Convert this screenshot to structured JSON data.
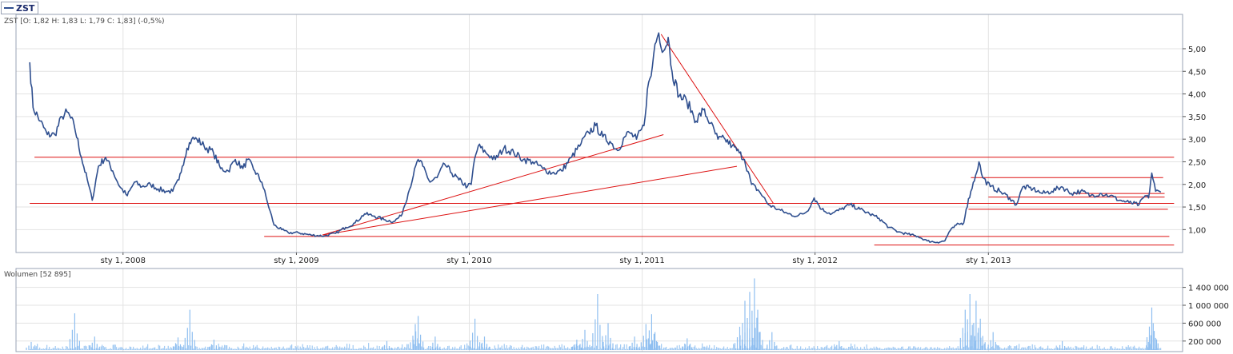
{
  "legend": {
    "symbol": "ZST",
    "color": "#2f4f8f"
  },
  "price_panel": {
    "info": "ZST [O: 1,82  H: 1,83  L: 1,79  C: 1,83] (-0,5%)"
  },
  "volume_panel": {
    "info": "Wolumen [52 895]"
  },
  "colors": {
    "price_line": "#2f4f8f",
    "trend_lines": "#dd1111",
    "volume_bars": "#8fbff0",
    "grid": "#e3e3e3"
  },
  "chart_data": [
    {
      "type": "line",
      "name": "price",
      "series": [
        {
          "name": "ZST",
          "values": [
            [
              "2007-06-18",
              4.7
            ],
            [
              "2007-06-25",
              3.7
            ],
            [
              "2007-07-10",
              3.4
            ],
            [
              "2007-07-25",
              3.1
            ],
            [
              "2007-08-10",
              3.1
            ],
            [
              "2007-08-25",
              3.5
            ],
            [
              "2007-09-05",
              3.6
            ],
            [
              "2007-09-20",
              3.3
            ],
            [
              "2007-10-05",
              2.6
            ],
            [
              "2007-10-20",
              2.0
            ],
            [
              "2007-10-28",
              1.65
            ],
            [
              "2007-11-10",
              2.4
            ],
            [
              "2007-11-25",
              2.6
            ],
            [
              "2007-12-10",
              2.3
            ],
            [
              "2007-12-25",
              1.95
            ],
            [
              "2008-01-10",
              1.75
            ],
            [
              "2008-01-25",
              2.05
            ],
            [
              "2008-02-10",
              1.95
            ],
            [
              "2008-02-28",
              2.0
            ],
            [
              "2008-03-15",
              1.9
            ],
            [
              "2008-04-01",
              1.85
            ],
            [
              "2008-04-15",
              1.85
            ],
            [
              "2008-04-28",
              2.1
            ],
            [
              "2008-05-05",
              2.4
            ],
            [
              "2008-05-15",
              2.8
            ],
            [
              "2008-05-25",
              3.0
            ],
            [
              "2008-06-05",
              3.0
            ],
            [
              "2008-06-20",
              2.85
            ],
            [
              "2008-07-10",
              2.7
            ],
            [
              "2008-07-25",
              2.35
            ],
            [
              "2008-08-10",
              2.3
            ],
            [
              "2008-08-25",
              2.55
            ],
            [
              "2008-09-10",
              2.35
            ],
            [
              "2008-09-20",
              2.55
            ],
            [
              "2008-10-05",
              2.3
            ],
            [
              "2008-10-20",
              2.05
            ],
            [
              "2008-11-01",
              1.6
            ],
            [
              "2008-11-15",
              1.1
            ],
            [
              "2008-12-01",
              1.0
            ],
            [
              "2008-12-15",
              0.93
            ],
            [
              "2009-01-05",
              0.93
            ],
            [
              "2009-02-01",
              0.88
            ],
            [
              "2009-03-01",
              0.86
            ],
            [
              "2009-03-25",
              0.92
            ],
            [
              "2009-04-15",
              1.05
            ],
            [
              "2009-05-05",
              1.15
            ],
            [
              "2009-05-25",
              1.35
            ],
            [
              "2009-06-15",
              1.3
            ],
            [
              "2009-07-05",
              1.22
            ],
            [
              "2009-07-25",
              1.18
            ],
            [
              "2009-08-10",
              1.3
            ],
            [
              "2009-08-25",
              1.8
            ],
            [
              "2009-09-05",
              2.2
            ],
            [
              "2009-09-15",
              2.55
            ],
            [
              "2009-09-25",
              2.4
            ],
            [
              "2009-10-10",
              2.05
            ],
            [
              "2009-10-25",
              2.15
            ],
            [
              "2009-11-10",
              2.45
            ],
            [
              "2009-11-25",
              2.25
            ],
            [
              "2009-12-10",
              2.1
            ],
            [
              "2009-12-28",
              1.95
            ],
            [
              "2010-01-05",
              2.0
            ],
            [
              "2010-01-12",
              2.55
            ],
            [
              "2010-01-20",
              2.85
            ],
            [
              "2010-02-05",
              2.7
            ],
            [
              "2010-02-25",
              2.55
            ],
            [
              "2010-03-15",
              2.8
            ],
            [
              "2010-04-05",
              2.7
            ],
            [
              "2010-04-25",
              2.55
            ],
            [
              "2010-05-15",
              2.5
            ],
            [
              "2010-06-05",
              2.35
            ],
            [
              "2010-06-25",
              2.25
            ],
            [
              "2010-07-15",
              2.3
            ],
            [
              "2010-08-05",
              2.6
            ],
            [
              "2010-08-25",
              2.9
            ],
            [
              "2010-09-10",
              3.15
            ],
            [
              "2010-09-25",
              3.3
            ],
            [
              "2010-10-10",
              3.05
            ],
            [
              "2010-10-25",
              2.95
            ],
            [
              "2010-11-10",
              2.75
            ],
            [
              "2010-11-25",
              3.05
            ],
            [
              "2010-12-05",
              3.15
            ],
            [
              "2010-12-20",
              3.0
            ],
            [
              "2011-01-05",
              3.3
            ],
            [
              "2011-01-12",
              4.1
            ],
            [
              "2011-01-20",
              4.4
            ],
            [
              "2011-01-28",
              5.1
            ],
            [
              "2011-02-05",
              5.35
            ],
            [
              "2011-02-15",
              4.95
            ],
            [
              "2011-02-25",
              5.25
            ],
            [
              "2011-03-05",
              4.5
            ],
            [
              "2011-03-20",
              3.95
            ],
            [
              "2011-04-05",
              3.85
            ],
            [
              "2011-04-25",
              3.4
            ],
            [
              "2011-05-10",
              3.65
            ],
            [
              "2011-05-25",
              3.35
            ],
            [
              "2011-06-10",
              3.0
            ],
            [
              "2011-06-25",
              3.0
            ],
            [
              "2011-07-10",
              2.85
            ],
            [
              "2011-07-25",
              2.7
            ],
            [
              "2011-08-05",
              2.55
            ],
            [
              "2011-08-20",
              2.0
            ],
            [
              "2011-09-05",
              1.85
            ],
            [
              "2011-09-25",
              1.55
            ],
            [
              "2011-10-15",
              1.45
            ],
            [
              "2011-11-05",
              1.35
            ],
            [
              "2011-11-25",
              1.3
            ],
            [
              "2011-12-15",
              1.4
            ],
            [
              "2011-12-30",
              1.7
            ],
            [
              "2012-01-15",
              1.45
            ],
            [
              "2012-02-05",
              1.35
            ],
            [
              "2012-02-25",
              1.45
            ],
            [
              "2012-03-15",
              1.55
            ],
            [
              "2012-04-05",
              1.45
            ],
            [
              "2012-04-25",
              1.35
            ],
            [
              "2012-05-15",
              1.25
            ],
            [
              "2012-06-05",
              1.05
            ],
            [
              "2012-06-25",
              0.95
            ],
            [
              "2012-07-15",
              0.9
            ],
            [
              "2012-08-05",
              0.85
            ],
            [
              "2012-08-25",
              0.75
            ],
            [
              "2012-09-15",
              0.72
            ],
            [
              "2012-10-01",
              0.75
            ],
            [
              "2012-10-10",
              0.95
            ],
            [
              "2012-10-25",
              1.1
            ],
            [
              "2012-11-10",
              1.15
            ],
            [
              "2012-11-15",
              1.45
            ],
            [
              "2012-11-25",
              1.85
            ],
            [
              "2012-12-05",
              2.2
            ],
            [
              "2012-12-12",
              2.5
            ],
            [
              "2012-12-20",
              2.15
            ],
            [
              "2013-01-05",
              1.95
            ],
            [
              "2013-01-25",
              1.85
            ],
            [
              "2013-02-15",
              1.7
            ],
            [
              "2013-03-01",
              1.55
            ],
            [
              "2013-03-15",
              1.95
            ],
            [
              "2013-04-05",
              1.9
            ],
            [
              "2013-04-25",
              1.8
            ],
            [
              "2013-05-15",
              1.85
            ],
            [
              "2013-06-05",
              1.95
            ],
            [
              "2013-06-25",
              1.8
            ],
            [
              "2013-07-15",
              1.85
            ],
            [
              "2013-08-05",
              1.75
            ],
            [
              "2013-08-25",
              1.8
            ],
            [
              "2013-09-15",
              1.75
            ],
            [
              "2013-10-05",
              1.65
            ],
            [
              "2013-10-25",
              1.6
            ],
            [
              "2013-11-15",
              1.55
            ],
            [
              "2013-11-28",
              1.75
            ],
            [
              "2013-12-05",
              1.7
            ],
            [
              "2013-12-12",
              2.25
            ],
            [
              "2013-12-20",
              1.85
            ],
            [
              "2013-12-31",
              1.83
            ]
          ]
        }
      ],
      "trend_lines": [
        {
          "from": [
            "2007-06-28",
            2.6
          ],
          "to": [
            "2014-01-28",
            2.6
          ]
        },
        {
          "from": [
            "2007-06-18",
            1.58
          ],
          "to": [
            "2014-01-28",
            1.58
          ]
        },
        {
          "from": [
            "2008-10-25",
            0.85
          ],
          "to": [
            "2014-01-18",
            0.85
          ]
        },
        {
          "from": [
            "2012-05-05",
            0.66
          ],
          "to": [
            "2014-01-28",
            0.66
          ]
        },
        {
          "from": [
            "2012-11-20",
            1.45
          ],
          "to": [
            "2014-01-15",
            1.45
          ]
        },
        {
          "from": [
            "2012-11-25",
            2.15
          ],
          "to": [
            "2014-01-05",
            2.15
          ]
        },
        {
          "from": [
            "2013-01-01",
            1.72
          ],
          "to": [
            "2014-01-08",
            1.72
          ]
        },
        {
          "from": [
            "2013-07-01",
            1.8
          ],
          "to": [
            "2014-01-08",
            1.8
          ]
        },
        {
          "from": [
            "2009-02-25",
            0.88
          ],
          "to": [
            "2011-02-15",
            3.1
          ]
        },
        {
          "from": [
            "2009-02-25",
            0.88
          ],
          "to": [
            "2011-07-20",
            2.4
          ]
        },
        {
          "from": [
            "2011-02-10",
            5.32
          ],
          "to": [
            "2011-10-05",
            1.58
          ]
        }
      ],
      "ylim": [
        0.6,
        5.6
      ],
      "y_ticks": [
        "1,00",
        "1,50",
        "2,00",
        "2,50",
        "3,00",
        "3,50",
        "4,00",
        "4,50",
        "5,00"
      ],
      "y_tick_values": [
        1.0,
        1.5,
        2.0,
        2.5,
        3.0,
        3.5,
        4.0,
        4.5,
        5.0
      ],
      "x_ticks": [
        "sty 1, 2008",
        "sty 1, 2009",
        "sty 1, 2010",
        "sty 1, 2011",
        "sty 1, 2012",
        "sty 1, 2013"
      ],
      "x_tick_dates": [
        "2008-01-01",
        "2009-01-01",
        "2010-01-01",
        "2011-01-01",
        "2012-01-01",
        "2013-01-01"
      ],
      "xlim": [
        "2007-05-20",
        "2014-02-15"
      ],
      "grid": true
    },
    {
      "type": "bar",
      "name": "volume",
      "series": [
        {
          "name": "Wolumen",
          "spikes": [
            [
              "2007-06-20",
              180000
            ],
            [
              "2007-09-20",
              820000
            ],
            [
              "2007-11-01",
              300000
            ],
            [
              "2008-04-25",
              280000
            ],
            [
              "2008-05-20",
              900000
            ],
            [
              "2008-07-10",
              230000
            ],
            [
              "2009-07-10",
              200000
            ],
            [
              "2009-09-08",
              580000
            ],
            [
              "2009-09-14",
              760000
            ],
            [
              "2009-10-20",
              300000
            ],
            [
              "2010-01-12",
              700000
            ],
            [
              "2010-02-01",
              300000
            ],
            [
              "2010-08-15",
              230000
            ],
            [
              "2010-09-01",
              450000
            ],
            [
              "2010-09-28",
              1250000
            ],
            [
              "2010-10-20",
              600000
            ],
            [
              "2010-12-15",
              300000
            ],
            [
              "2011-01-08",
              580000
            ],
            [
              "2011-01-20",
              800000
            ],
            [
              "2011-01-27",
              400000
            ],
            [
              "2011-04-05",
              260000
            ],
            [
              "2011-07-25",
              520000
            ],
            [
              "2011-08-05",
              1100000
            ],
            [
              "2011-08-15",
              1300000
            ],
            [
              "2011-08-25",
              1600000
            ],
            [
              "2011-09-01",
              900000
            ],
            [
              "2011-10-01",
              400000
            ],
            [
              "2012-02-20",
              200000
            ],
            [
              "2012-11-12",
              900000
            ],
            [
              "2012-11-22",
              1250000
            ],
            [
              "2012-12-05",
              1100000
            ],
            [
              "2012-12-14",
              700000
            ],
            [
              "2013-01-10",
              400000
            ],
            [
              "2013-06-05",
              200000
            ],
            [
              "2013-12-11",
              950000
            ],
            [
              "2013-12-14",
              600000
            ]
          ]
        }
      ],
      "baseline_range": [
        20000,
        160000
      ],
      "ylim": [
        0,
        1750000
      ],
      "y_ticks": [
        "200 000",
        "600 000",
        "1 000 000",
        "1 400 000"
      ],
      "y_tick_values": [
        200000,
        600000,
        1000000,
        1400000
      ],
      "grid": true
    }
  ]
}
